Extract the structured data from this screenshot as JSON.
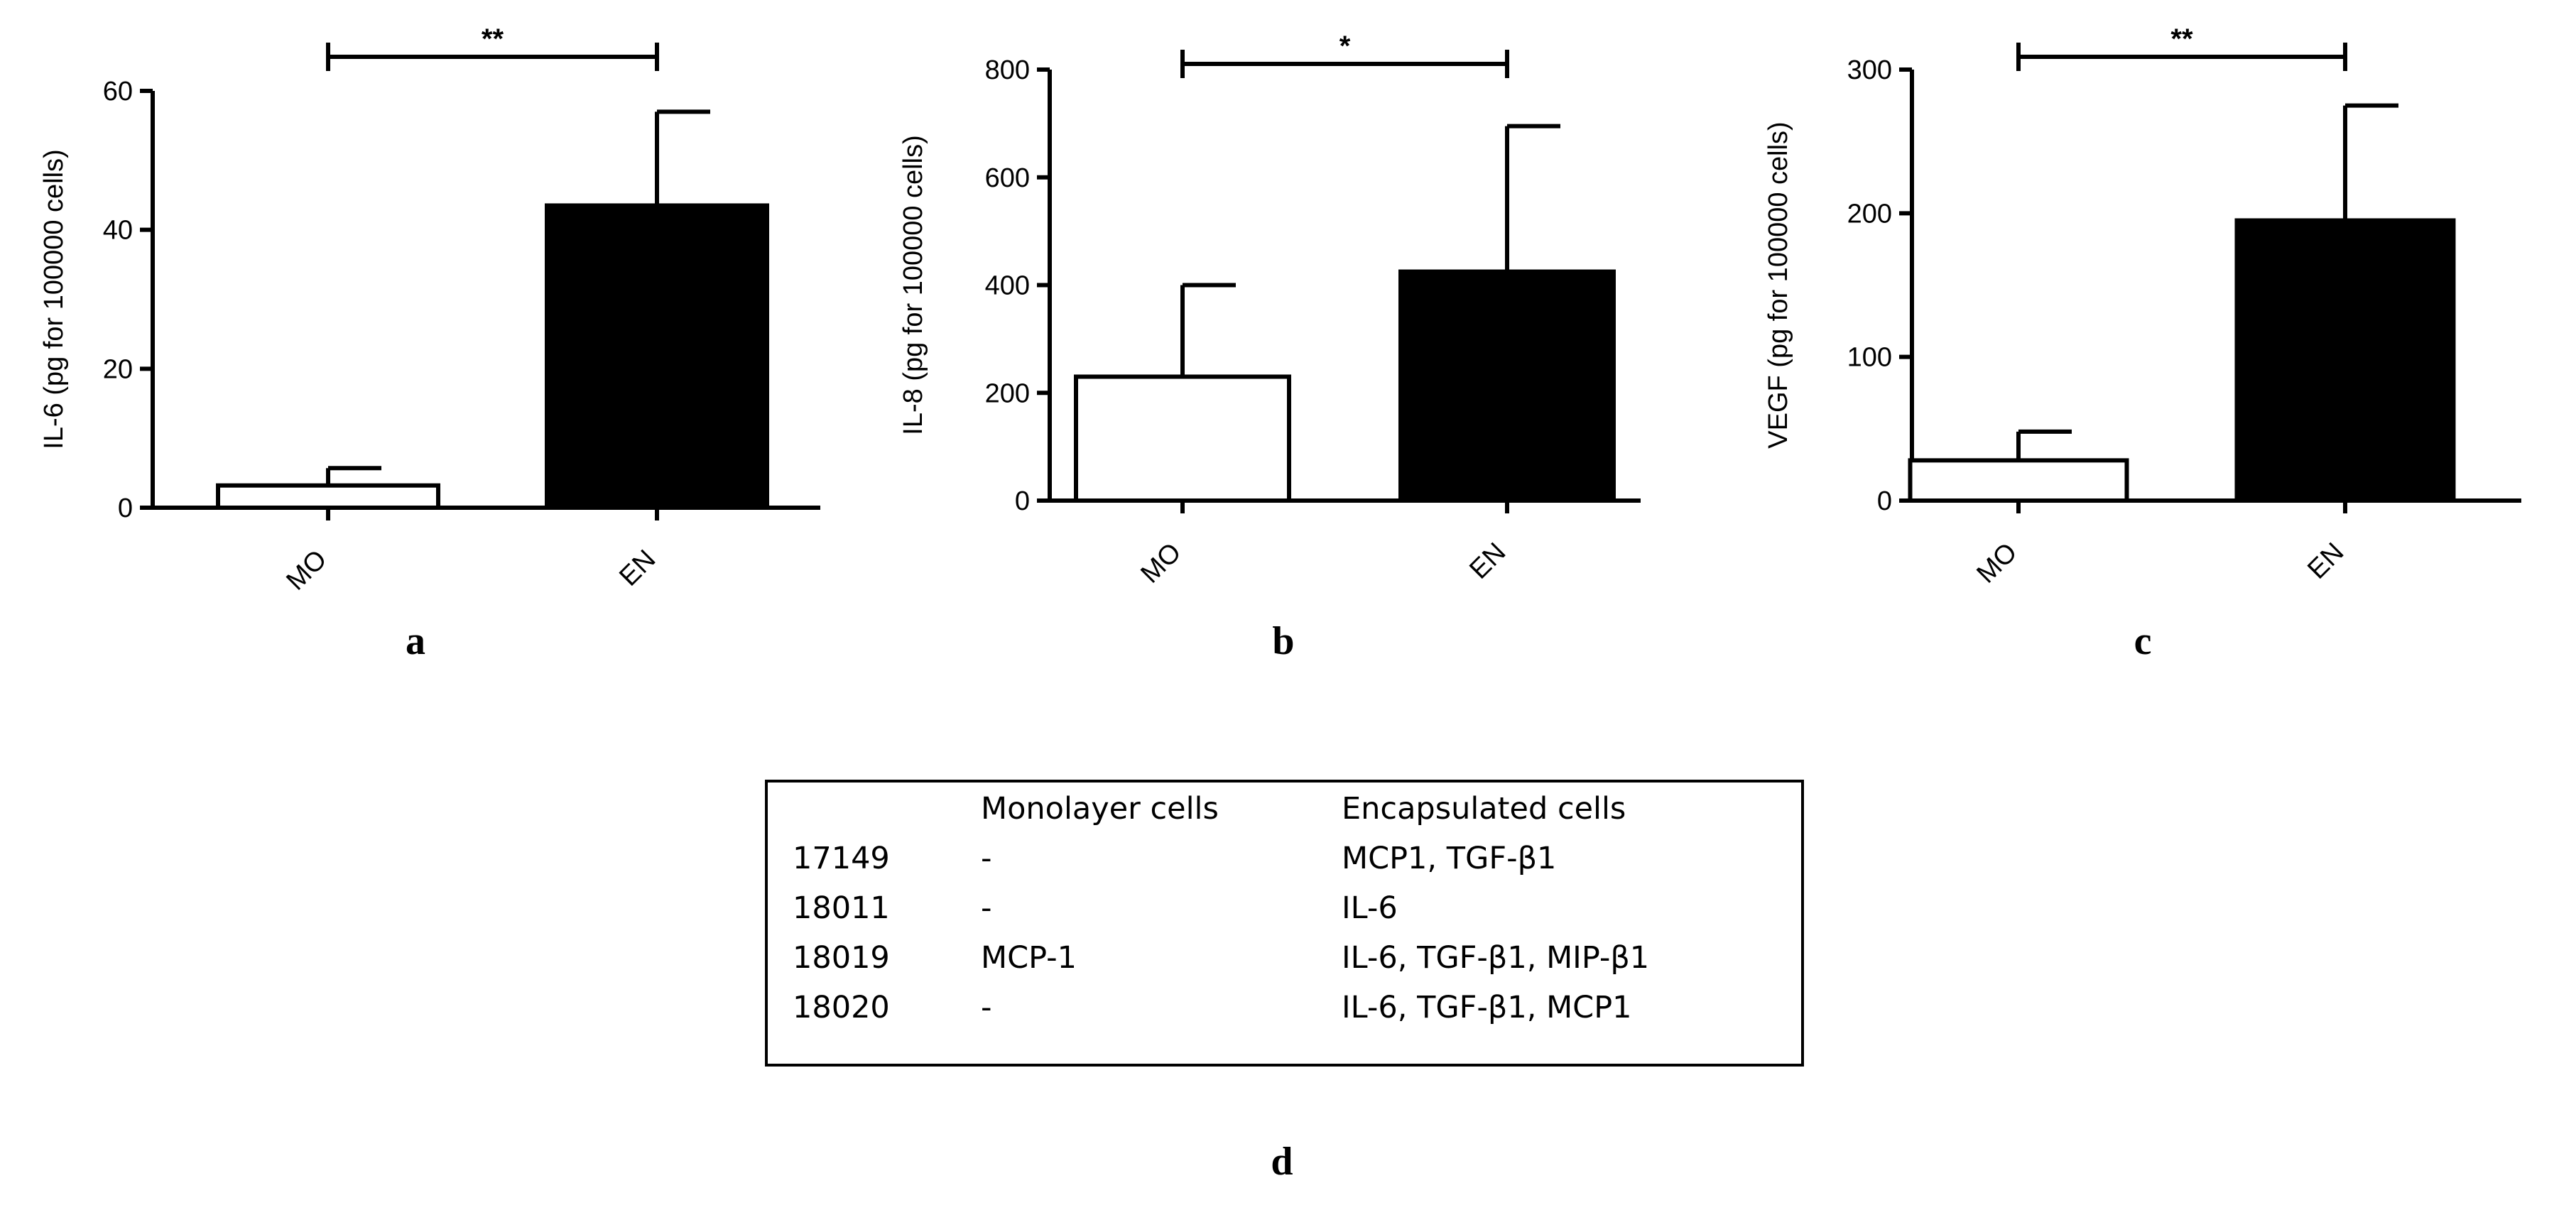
{
  "chart_data": [
    {
      "panel": "a",
      "type": "bar",
      "categories": [
        "MO",
        "EN"
      ],
      "values": [
        3.2,
        43.5
      ],
      "errors": [
        2.5,
        13.5
      ],
      "bar_fills": [
        "#ffffff",
        "#000000"
      ],
      "ylabel": "IL-6 (pg for 100000 cells)",
      "ylim": [
        0,
        60
      ],
      "yticks": [
        0,
        20,
        40,
        60
      ],
      "significance": "**"
    },
    {
      "panel": "b",
      "type": "bar",
      "categories": [
        "MO",
        "EN"
      ],
      "values": [
        230,
        425
      ],
      "errors": [
        170,
        270
      ],
      "bar_fills": [
        "#ffffff",
        "#000000"
      ],
      "ylabel": "IL-8 (pg for 100000 cells)",
      "ylim": [
        0,
        800
      ],
      "yticks": [
        0,
        200,
        400,
        600,
        800
      ],
      "significance": "*"
    },
    {
      "panel": "c",
      "type": "bar",
      "categories": [
        "MO",
        "EN"
      ],
      "values": [
        28,
        195
      ],
      "errors": [
        20,
        80
      ],
      "bar_fills": [
        "#ffffff",
        "#000000"
      ],
      "ylabel": "VEGF (pg for 100000 cells)",
      "ylim": [
        0,
        300
      ],
      "yticks": [
        0,
        100,
        200,
        300
      ],
      "significance": "**"
    }
  ],
  "table": {
    "panel": "d",
    "headers": [
      "",
      "Monolayer cells",
      "Encapsulated cells"
    ],
    "rows": [
      [
        "17149",
        "-",
        "MCP1, TGF-β1"
      ],
      [
        "18011",
        "-",
        "IL-6"
      ],
      [
        "18019",
        "MCP-1",
        "IL-6, TGF-β1, MIP-β1"
      ],
      [
        "18020",
        "-",
        "IL-6, TGF-β1, MCP1"
      ]
    ]
  }
}
